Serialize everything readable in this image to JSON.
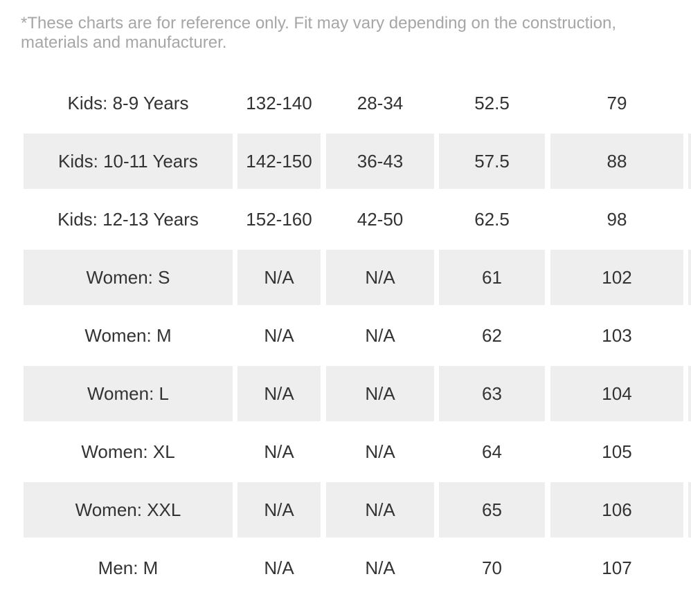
{
  "note": "*These charts are for reference only. Fit may vary depending on the construction, materials and manufacturer.",
  "rows": [
    {
      "size": "Kids: 8-9 Years",
      "col1": "132-140",
      "col2": "28-34",
      "col3": "52.5",
      "col4": "79"
    },
    {
      "size": "Kids: 10-11 Years",
      "col1": "142-150",
      "col2": "36-43",
      "col3": "57.5",
      "col4": "88"
    },
    {
      "size": "Kids: 12-13 Years",
      "col1": "152-160",
      "col2": "42-50",
      "col3": "62.5",
      "col4": "98"
    },
    {
      "size": "Women: S",
      "col1": "N/A",
      "col2": "N/A",
      "col3": "61",
      "col4": "102"
    },
    {
      "size": "Women: M",
      "col1": "N/A",
      "col2": "N/A",
      "col3": "62",
      "col4": "103"
    },
    {
      "size": "Women: L",
      "col1": "N/A",
      "col2": "N/A",
      "col3": "63",
      "col4": "104"
    },
    {
      "size": "Women: XL",
      "col1": "N/A",
      "col2": "N/A",
      "col3": "64",
      "col4": "105"
    },
    {
      "size": "Women: XXL",
      "col1": "N/A",
      "col2": "N/A",
      "col3": "65",
      "col4": "106"
    },
    {
      "size": "Men: M",
      "col1": "N/A",
      "col2": "N/A",
      "col3": "70",
      "col4": "107"
    }
  ]
}
